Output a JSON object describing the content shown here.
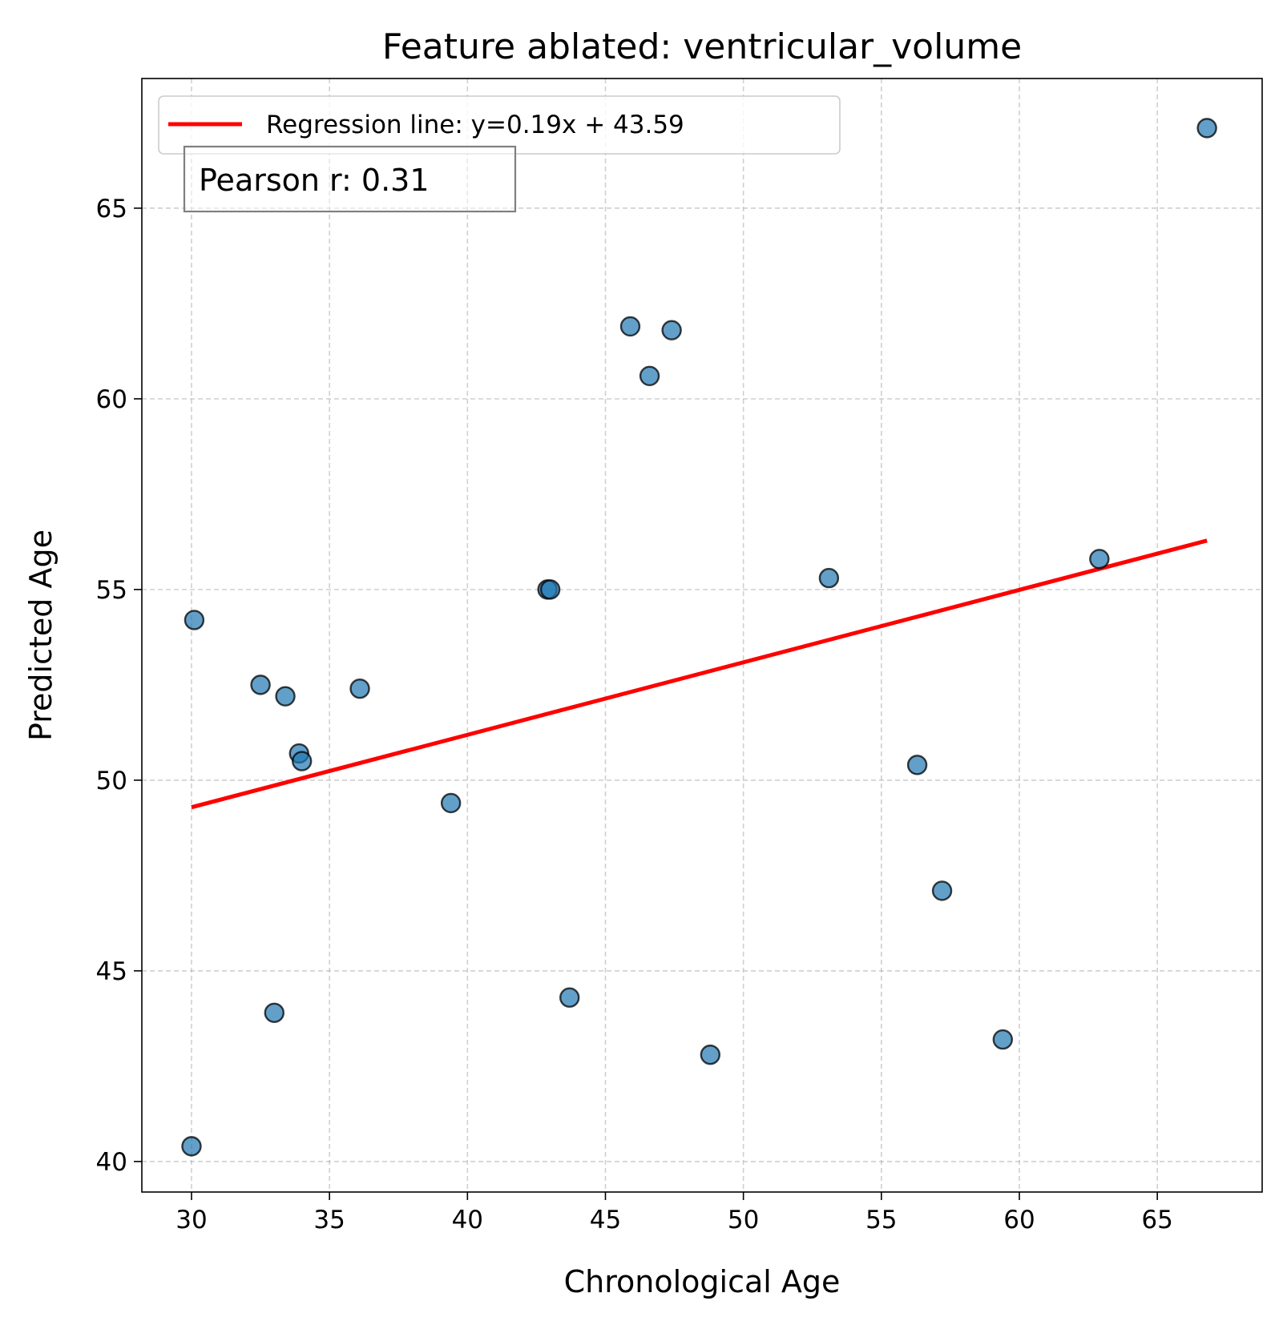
{
  "chart_data": {
    "type": "scatter",
    "title": "Feature ablated: ventricular_volume",
    "xlabel": "Chronological Age",
    "ylabel": "Predicted Age",
    "xlim": [
      28.2,
      68.8
    ],
    "ylim": [
      39.2,
      68.4
    ],
    "xticks": [
      30,
      35,
      40,
      45,
      50,
      55,
      60,
      65
    ],
    "yticks": [
      40,
      45,
      50,
      55,
      60,
      65
    ],
    "grid": true,
    "legend_position": "top-left",
    "colors": {
      "points": "#1f77b4",
      "point_edge": "#000000",
      "regression": "#ff0000"
    },
    "series": [
      {
        "kind": "scatter",
        "points": [
          [
            30.0,
            40.4
          ],
          [
            30.1,
            54.2
          ],
          [
            32.5,
            52.5
          ],
          [
            33.0,
            43.9
          ],
          [
            33.4,
            52.2
          ],
          [
            33.9,
            50.7
          ],
          [
            34.0,
            50.5
          ],
          [
            36.1,
            52.4
          ],
          [
            39.4,
            49.4
          ],
          [
            42.9,
            55.0
          ],
          [
            43.0,
            55.0
          ],
          [
            43.7,
            44.3
          ],
          [
            45.9,
            61.9
          ],
          [
            46.6,
            60.6
          ],
          [
            47.4,
            61.8
          ],
          [
            48.8,
            42.8
          ],
          [
            53.1,
            55.3
          ],
          [
            56.3,
            50.4
          ],
          [
            57.2,
            47.1
          ],
          [
            59.4,
            43.2
          ],
          [
            62.9,
            55.8
          ],
          [
            66.8,
            67.1
          ]
        ]
      },
      {
        "kind": "line",
        "name": "Regression line: y=0.19x + 43.59",
        "slope": 0.19,
        "intercept": 43.59,
        "x_range": [
          30.0,
          66.8
        ]
      }
    ],
    "annotation": "Pearson r: 0.31"
  }
}
